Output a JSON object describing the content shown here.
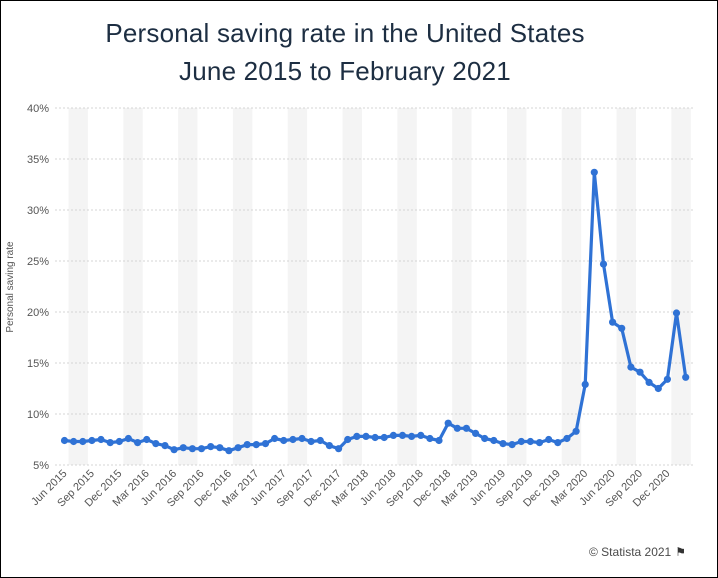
{
  "chart_data": {
    "type": "line",
    "title": "Personal saving rate in the United States",
    "subtitle": "June 2015 to February 2021",
    "ylabel": "Personal saving rate",
    "xlabel": "",
    "ylim": [
      5,
      40
    ],
    "yticks": [
      "5%",
      "10%",
      "15%",
      "20%",
      "25%",
      "30%",
      "35%",
      "40%"
    ],
    "xtick_labels": [
      "Jun 2015",
      "Sep 2015",
      "Dec 2015",
      "Mar 2016",
      "Jun 2016",
      "Sep 2016",
      "Dec 2016",
      "Mar 2017",
      "Jun 2017",
      "Sep 2017",
      "Dec 2017",
      "Mar 2018",
      "Jun 2018",
      "Sep 2018",
      "Dec 2018",
      "Mar 2019",
      "Jun 2019",
      "Sep 2019",
      "Dec 2019",
      "Mar 2020",
      "Jun 2020",
      "Sep 2020",
      "Dec 2020"
    ],
    "grid": true,
    "color": "#2f72d5",
    "x": [
      "Jun 2015",
      "Jul 2015",
      "Aug 2015",
      "Sep 2015",
      "Oct 2015",
      "Nov 2015",
      "Dec 2015",
      "Jan 2016",
      "Feb 2016",
      "Mar 2016",
      "Apr 2016",
      "May 2016",
      "Jun 2016",
      "Jul 2016",
      "Aug 2016",
      "Sep 2016",
      "Oct 2016",
      "Nov 2016",
      "Dec 2016",
      "Jan 2017",
      "Feb 2017",
      "Mar 2017",
      "Apr 2017",
      "May 2017",
      "Jun 2017",
      "Jul 2017",
      "Aug 2017",
      "Sep 2017",
      "Oct 2017",
      "Nov 2017",
      "Dec 2017",
      "Jan 2018",
      "Feb 2018",
      "Mar 2018",
      "Apr 2018",
      "May 2018",
      "Jun 2018",
      "Jul 2018",
      "Aug 2018",
      "Sep 2018",
      "Oct 2018",
      "Nov 2018",
      "Dec 2018",
      "Jan 2019",
      "Feb 2019",
      "Mar 2019",
      "Apr 2019",
      "May 2019",
      "Jun 2019",
      "Jul 2019",
      "Aug 2019",
      "Sep 2019",
      "Oct 2019",
      "Nov 2019",
      "Dec 2019",
      "Jan 2020",
      "Feb 2020",
      "Mar 2020",
      "Apr 2020",
      "May 2020",
      "Jun 2020",
      "Jul 2020",
      "Aug 2020",
      "Sep 2020",
      "Oct 2020",
      "Nov 2020",
      "Dec 2020",
      "Jan 2021",
      "Feb 2021"
    ],
    "series": [
      {
        "values": [
          7.4,
          7.3,
          7.3,
          7.4,
          7.5,
          7.2,
          7.3,
          7.6,
          7.2,
          7.5,
          7.1,
          6.9,
          6.5,
          6.7,
          6.6,
          6.6,
          6.8,
          6.7,
          6.4,
          6.7,
          7.0,
          7.0,
          7.1,
          7.6,
          7.4,
          7.5,
          7.6,
          7.3,
          7.4,
          6.9,
          6.6,
          7.5,
          7.8,
          7.8,
          7.7,
          7.7,
          7.9,
          7.9,
          7.8,
          7.9,
          7.6,
          7.4,
          9.1,
          8.6,
          8.6,
          8.1,
          7.6,
          7.4,
          7.1,
          7.0,
          7.3,
          7.3,
          7.2,
          7.5,
          7.2,
          7.6,
          8.3,
          12.9,
          33.7,
          24.7,
          19.0,
          18.4,
          14.6,
          14.1,
          13.1,
          12.5,
          13.4,
          19.9,
          13.6
        ]
      }
    ]
  },
  "credit": {
    "text": "© Statista 2021",
    "flag_icon": "flag-icon"
  }
}
